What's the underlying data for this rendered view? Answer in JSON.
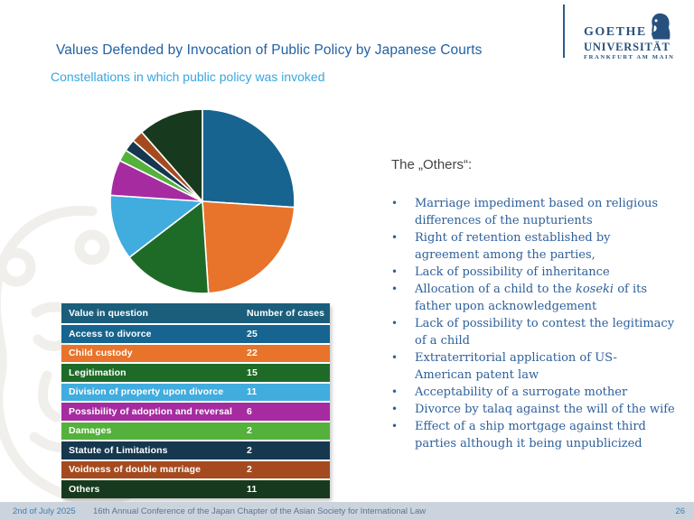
{
  "slide": {
    "title": "Values Defended by Invocation of Public Policy by Japanese Courts",
    "subtitle": "Constellations in which public policy was invoked"
  },
  "logo": {
    "line1": "GOETHE",
    "line2": "UNIVERSITÄT",
    "line3": "FRANKFURT AM MAIN",
    "color": "#26517E"
  },
  "chart_data": {
    "type": "pie",
    "title": "Constellations in which public policy was invoked",
    "categories": [
      "Access to divorce",
      "Child custody",
      "Legitimation",
      "Division of property upon divorce",
      "Possibility of adoption and reversal",
      "Damages",
      "Statute of Limitations",
      "Voidness of double marriage",
      "Others"
    ],
    "values": [
      25,
      22,
      15,
      11,
      6,
      2,
      2,
      2,
      11
    ],
    "colors": [
      "#16648F",
      "#E8732A",
      "#1E6B28",
      "#41ACDE",
      "#A62BA0",
      "#54B13C",
      "#16384E",
      "#A54A1E",
      "#173A1E"
    ],
    "total": 96,
    "start_angle_deg": 0,
    "direction": "clockwise",
    "legend_position": "table-below-left"
  },
  "table": {
    "headers": [
      "Value in question",
      "Number of cases"
    ],
    "header_color": "#1A5E7C",
    "rows": [
      {
        "label": "Access to divorce",
        "value": "25",
        "color": "#16648F"
      },
      {
        "label": "Child custody",
        "value": "22",
        "color": "#E8732A"
      },
      {
        "label": "Legitimation",
        "value": "15",
        "color": "#1E6B28"
      },
      {
        "label": "Division of property upon divorce",
        "value": "11",
        "color": "#41ACDE"
      },
      {
        "label": "Possibility of adoption and reversal",
        "value": "6",
        "color": "#A62BA0"
      },
      {
        "label": "Damages",
        "value": "2",
        "color": "#54B13C"
      },
      {
        "label": "Statute of Limitations",
        "value": "2",
        "color": "#16384E"
      },
      {
        "label": "Voidness of double marriage",
        "value": "2",
        "color": "#A54A1E"
      },
      {
        "label": "Others",
        "value": "11",
        "color": "#173A1E"
      }
    ]
  },
  "others": {
    "heading": "The „Others“:",
    "items": [
      "Marriage impediment based on religious\ndifferences of the nupturients",
      "Right of retention established by\nagreement among the parties,",
      "Lack of possibility of inheritance",
      "Allocation of a child to the *koseki* of its\nfather upon acknowledgement",
      "Lack of possibility to contest the legitimacy\nof a child",
      "Extraterritorial application of US-\nAmerican patent law",
      "Acceptability of a surrogate mother",
      "Divorce by talaq against the will of the wife",
      "Effect of a ship mortgage against third\nparties although it being unpublicized"
    ]
  },
  "footer": {
    "date": "2nd of July 2025",
    "conference": "16th Annual Conference of the Japan Chapter of the Asian Society for International Law",
    "page": "26"
  }
}
